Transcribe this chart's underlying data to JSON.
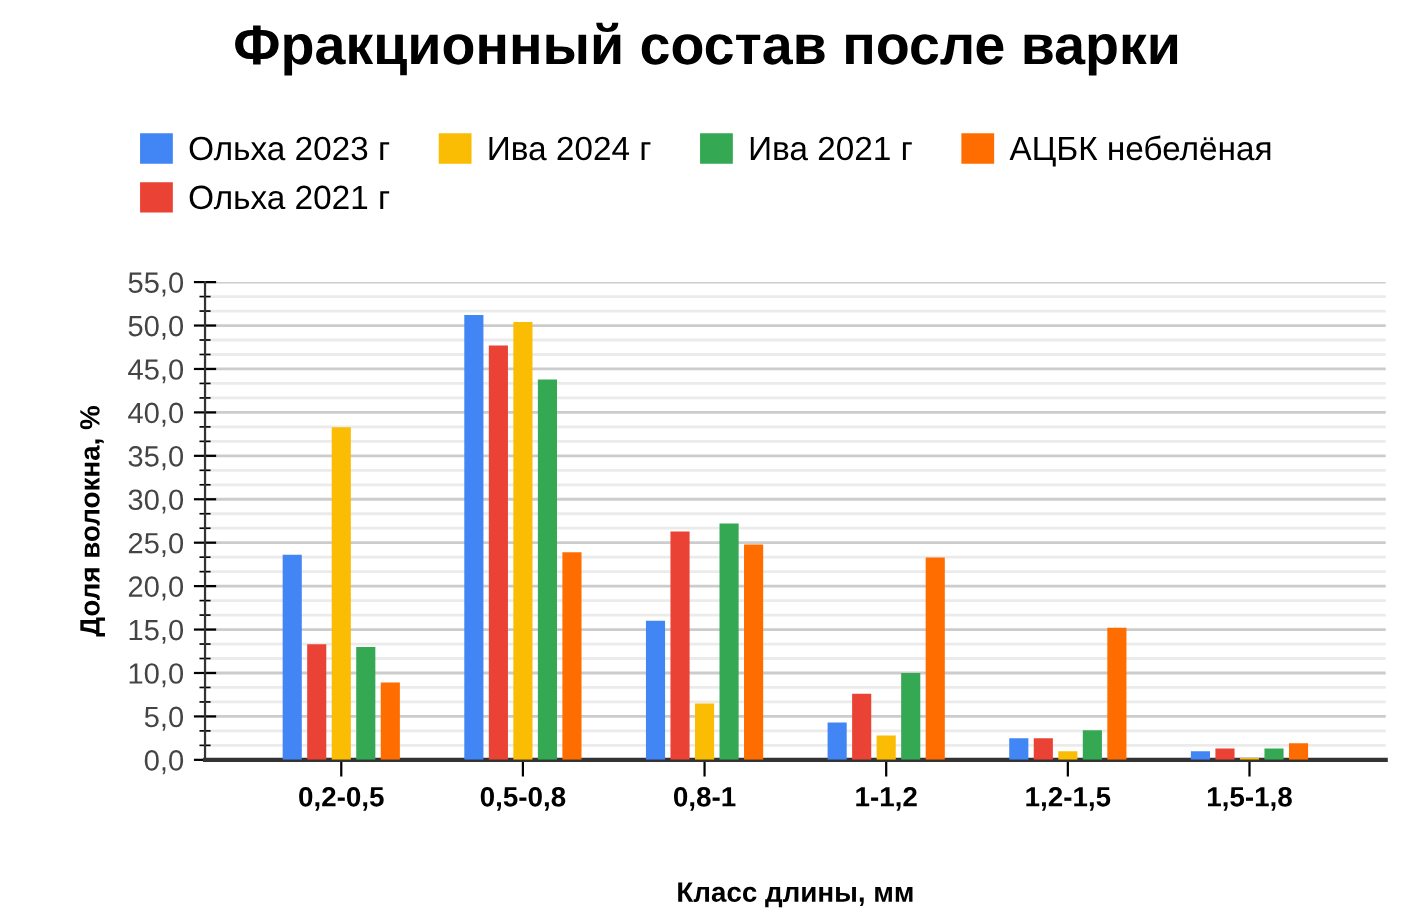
{
  "chart_data": {
    "type": "bar",
    "title": "Фракционный состав после варки",
    "xlabel": "Класс длины, мм",
    "ylabel": "Доля волокна, %",
    "categories": [
      "0,2-0,5",
      "0,5-0,8",
      "0,8-1",
      "1-1,2",
      "1,2-1,5",
      "1,5-1,8"
    ],
    "series": [
      {
        "name": "Ольха 2023 г",
        "color": "#4285f4",
        "values": [
          23.6,
          51.2,
          16.0,
          4.3,
          2.5,
          1.0
        ]
      },
      {
        "name": "Ольха 2021 г",
        "color": "#ea4335",
        "values": [
          13.3,
          47.7,
          26.3,
          7.6,
          2.5,
          1.3
        ]
      },
      {
        "name": "Ива 2024 г",
        "color": "#fbbc04",
        "values": [
          38.3,
          50.4,
          6.5,
          2.8,
          1.0,
          0.2
        ]
      },
      {
        "name": "Ива 2021 г",
        "color": "#34a853",
        "values": [
          13.0,
          43.8,
          27.2,
          10.0,
          3.4,
          1.3
        ]
      },
      {
        "name": "АЦБК небелёная",
        "color": "#ff6d01",
        "values": [
          8.9,
          23.9,
          24.8,
          23.3,
          15.2,
          1.9
        ]
      }
    ],
    "ylim": [
      0,
      55
    ],
    "yticks": [
      {
        "value": 0,
        "label": "0,0"
      },
      {
        "value": 5,
        "label": "5,0"
      },
      {
        "value": 10,
        "label": "10,0"
      },
      {
        "value": 15,
        "label": "15,0"
      },
      {
        "value": 20,
        "label": "20,0"
      },
      {
        "value": 25,
        "label": "25,0"
      },
      {
        "value": 30,
        "label": "30,0"
      },
      {
        "value": 35,
        "label": "35,0"
      },
      {
        "value": 40,
        "label": "40,0"
      },
      {
        "value": 45,
        "label": "45,0"
      },
      {
        "value": 50,
        "label": "50,0"
      },
      {
        "value": 55,
        "label": "55,0"
      }
    ],
    "grid": "y",
    "legend": "top"
  }
}
